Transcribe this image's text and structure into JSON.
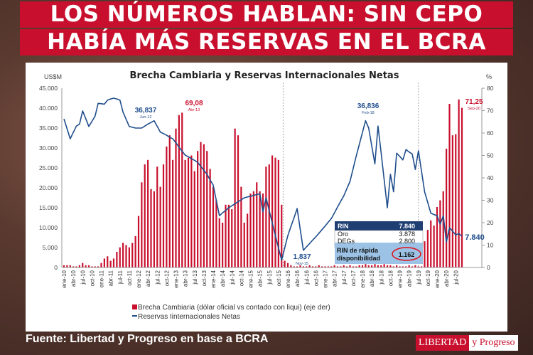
{
  "headline": {
    "line1": "LOS NÚMEROS HABLAN:  SIN CEPO",
    "line2": "HABÍA MÁS RESERVAS EN EL BCRA"
  },
  "footer": {
    "source": "Fuente: Libertad y Progreso en base a BCRA"
  },
  "logo": {
    "part1": "LIBERTAD",
    "part2": "y Progreso"
  },
  "colors": {
    "banner": "#c8102e",
    "bars": "#c8102e",
    "line": "#1f4e8c",
    "table_header": "#1f3f73",
    "table_highlight": "#9cc3e6"
  },
  "chart_data": {
    "type": "bar+line",
    "title": "Brecha Cambiaria y Reservas Internacionales Netas",
    "ylabel_left": "US$M",
    "ylabel_right": "%",
    "ylim_left": [
      0,
      45000
    ],
    "ylim_right": [
      0,
      80
    ],
    "yticks_left": [
      "0",
      "5.000",
      "10.000",
      "15.000",
      "20.000",
      "25.000",
      "30.000",
      "35.000",
      "40.000",
      "45.000"
    ],
    "yticks_right": [
      "0",
      "10",
      "20",
      "30",
      "40",
      "50",
      "60",
      "70",
      "80"
    ],
    "x_start": "ene-10",
    "x_end": "sep-20",
    "xtick_labels": [
      "ene-10",
      "abr-10",
      "jul-10",
      "oct-10",
      "ene-11",
      "abr-11",
      "jul-11",
      "oct-11",
      "ene-12",
      "abr-12",
      "jul-12",
      "oct-12",
      "ene-13",
      "abr-13",
      "jul-13",
      "oct-13",
      "ene-14",
      "abr-14",
      "jul-14",
      "oct-14",
      "ene-15",
      "abr-15",
      "jul-15",
      "oct-15",
      "ene-16",
      "abr-16",
      "jul-16",
      "oct-16",
      "ene-17",
      "abr-17",
      "jul-17",
      "oct-17",
      "ene-18",
      "abr-18",
      "jul-18",
      "oct-18",
      "ene-19",
      "abr-19",
      "jul-19",
      "oct-19",
      "ene-20",
      "abr-20",
      "jul-20"
    ],
    "series": [
      {
        "name": "Brecha Cambiaria (dólar oficial vs contado con liqui) (eje der)",
        "type": "bar",
        "axis": "right",
        "values": [
          1,
          1,
          1,
          0.5,
          0.5,
          1,
          2,
          1,
          1,
          0.5,
          0.5,
          0.5,
          2,
          4,
          5,
          3,
          4,
          7,
          9,
          11,
          10,
          9,
          11,
          14,
          23,
          38,
          46,
          48,
          35,
          34,
          45,
          36,
          46,
          54,
          59,
          48,
          62,
          68,
          69.08,
          48,
          49,
          50,
          43,
          52,
          56,
          55,
          52,
          44,
          36,
          30,
          22,
          20,
          28,
          28,
          26,
          62,
          59,
          36,
          20,
          24,
          33,
          34,
          38,
          34,
          33,
          45,
          46,
          50,
          49,
          48,
          28,
          3,
          2,
          1,
          0.5,
          0.5,
          1,
          0.5,
          0.5,
          1,
          0.5,
          0.5,
          1,
          0.5,
          0.5,
          0.5,
          0.5,
          1,
          0.5,
          0.5,
          1,
          0.5,
          1,
          0.5,
          0.5,
          1,
          1,
          1.5,
          1,
          1,
          1.5,
          1,
          1,
          1.5,
          1,
          1,
          0.5,
          1,
          0.5,
          0.5,
          0.5,
          1,
          0.5,
          1,
          0.5,
          0.5,
          11.7,
          16.8,
          21,
          18.7,
          27,
          30,
          34,
          53,
          73,
          59,
          59.5,
          75,
          71.25
        ]
      },
      {
        "name": "Reservas Iinternacionales Netas",
        "type": "line",
        "axis": "left",
        "values": [
          37300,
          34800,
          32300,
          33900,
          35500,
          36000,
          39300,
          37400,
          35400,
          36700,
          38000,
          41200,
          41100,
          41000,
          42000,
          42300,
          42500,
          42300,
          42000,
          39000,
          37200,
          35400,
          35200,
          35000,
          35000,
          35000,
          35500,
          36000,
          36400,
          36837,
          35400,
          34000,
          33600,
          33200,
          32700,
          32300,
          31300,
          30200,
          29200,
          28200,
          27800,
          27300,
          26900,
          26400,
          25400,
          24400,
          23400,
          22000,
          20700,
          16800,
          13000,
          13700,
          14300,
          15000,
          15500,
          16000,
          16500,
          17000,
          17500,
          17700,
          17900,
          18100,
          18300,
          18500,
          14000,
          17500,
          14300,
          11200,
          8000,
          4900,
          1837,
          4900,
          8000,
          10300,
          12500,
          14800,
          9500,
          4300,
          5200,
          6000,
          6900,
          7700,
          8600,
          9500,
          10400,
          11400,
          12300,
          13700,
          15200,
          16600,
          18000,
          19800,
          21600,
          24800,
          28000,
          30900,
          33900,
          36836,
          35000,
          30500,
          26000,
          35500,
          28800,
          22000,
          15000,
          23400,
          19000,
          28700,
          27900,
          27000,
          29600,
          29000,
          28500,
          24600,
          29300,
          24200,
          19000,
          16300,
          13600,
          13300,
          13000,
          10900,
          13000,
          6400,
          10000,
          9100,
          8200,
          8500,
          7840
        ]
      }
    ],
    "annotations": [
      {
        "value": "36,837",
        "date": "Jun-12",
        "series": "line"
      },
      {
        "value": "69,08",
        "date": "Abr-13",
        "series": "bar"
      },
      {
        "value": "1,837",
        "date": "Nov-15",
        "series": "line"
      },
      {
        "value": "36,836",
        "date": "Feb-18",
        "series": "line"
      },
      {
        "value": "71,25",
        "date": "Sep-20",
        "series": "bar"
      },
      {
        "value": "7.840",
        "date": "",
        "series": "line"
      }
    ],
    "inset_table": {
      "rows": [
        {
          "label": "RIN",
          "value": "7.840"
        },
        {
          "label": "Oro",
          "value": "3.878"
        },
        {
          "label": "DEGs",
          "value": "2.800"
        }
      ],
      "highlight": {
        "label_line1": "RIN de rápida",
        "label_line2": "disponibilidad",
        "value": "1.162"
      }
    },
    "legend_placement": "bottom-left",
    "grid": false
  }
}
